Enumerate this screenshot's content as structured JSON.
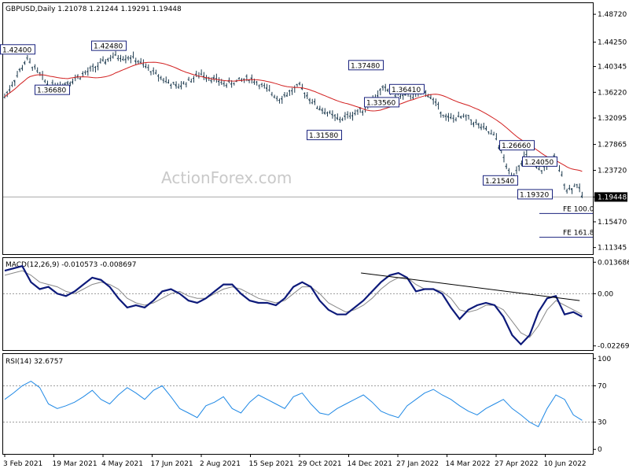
{
  "chart_data": {
    "type": "ohlc",
    "title": "GBPUSD,Daily  1.21078 1.21244 1.19291 1.19448",
    "watermark": "ActionForex.com",
    "dates": [
      "3 Feb 2021",
      "19 Mar 2021",
      "4 May 2021",
      "17 Jun 2021",
      "2 Aug 2021",
      "15 Sep 2021",
      "29 Oct 2021",
      "14 Dec 2021",
      "27 Jan 2022",
      "14 Mar 2022",
      "27 Apr 2022",
      "10 Jun 2022"
    ],
    "price_panel": {
      "ticks": [
        "1.48720",
        "1.44250",
        "1.40345",
        "1.36220",
        "1.32095",
        "1.27865",
        "1.23720",
        "1.19448",
        "1.15470",
        "1.11345"
      ],
      "tick_values": [
        1.4872,
        1.4425,
        1.4035,
        1.3622,
        1.321,
        1.2787,
        1.2372,
        1.19448,
        1.1547,
        1.1135
      ],
      "ylim": [
        1.103,
        1.505
      ],
      "last_price_label": "1.19448",
      "swing_labels": [
        {
          "text": "1.42400",
          "date_index": 0,
          "value": 1.424
        },
        {
          "text": "1.36680",
          "date_index": 1,
          "value": 1.3668
        },
        {
          "text": "1.42480",
          "date_index": 2,
          "value": 1.4248
        },
        {
          "text": "1.31580",
          "date_index": 6,
          "value": 1.3158
        },
        {
          "text": "1.37480",
          "date_index": 7,
          "value": 1.3748
        },
        {
          "text": "1.33560",
          "date_index": 7,
          "value": 1.3356
        },
        {
          "text": "1.36410",
          "date_index": 8,
          "value": 1.3641
        },
        {
          "text": "1.26660",
          "date_index": 10,
          "value": 1.2666
        },
        {
          "text": "1.21540",
          "date_index": 10,
          "value": 1.2154
        },
        {
          "text": "1.24050",
          "date_index": 10,
          "value": 1.2405
        },
        {
          "text": "1.19320",
          "date_index": 10,
          "value": 1.1932
        }
      ],
      "fe_labels": [
        {
          "text": "FE 100.0",
          "value": 1.168
        },
        {
          "text": "FE 161.8",
          "value": 1.13
        }
      ]
    },
    "macd_panel": {
      "label": "MACD(12,26,9) -0.010573 -0.008697",
      "ticks": [
        "0.013686",
        "0.00",
        "-0.022698"
      ],
      "tick_values": [
        0.013686,
        0.0,
        -0.022698
      ],
      "ylim": [
        -0.0245,
        0.0155
      ],
      "macd": [
        0.01,
        0.011,
        0.012,
        0.005,
        0.002,
        0.003,
        0.0,
        -0.001,
        0.001,
        0.004,
        0.007,
        0.006,
        0.003,
        -0.002,
        -0.006,
        -0.005,
        -0.006,
        -0.003,
        0.001,
        0.002,
        0.0,
        -0.003,
        -0.004,
        -0.002,
        0.001,
        0.004,
        0.004,
        0.0,
        -0.003,
        -0.004,
        -0.004,
        -0.005,
        -0.002,
        0.003,
        0.005,
        0.003,
        -0.003,
        -0.007,
        -0.009,
        -0.009,
        -0.006,
        -0.003,
        0.001,
        0.005,
        0.008,
        0.009,
        0.007,
        0.001,
        0.002,
        0.002,
        0.0,
        -0.006,
        -0.011,
        -0.007,
        -0.005,
        -0.004,
        -0.005,
        -0.01,
        -0.018,
        -0.022,
        -0.018,
        -0.008,
        -0.002,
        -0.001,
        -0.009,
        -0.008,
        -0.01
      ],
      "signal": [
        0.008,
        0.009,
        0.01,
        0.008,
        0.005,
        0.004,
        0.003,
        0.001,
        0.0,
        0.002,
        0.004,
        0.005,
        0.004,
        0.002,
        -0.002,
        -0.004,
        -0.005,
        -0.004,
        -0.002,
        0.0,
        0.001,
        -0.001,
        -0.002,
        -0.002,
        0.0,
        0.002,
        0.003,
        0.002,
        0.0,
        -0.002,
        -0.003,
        -0.004,
        -0.003,
        0.0,
        0.003,
        0.003,
        0.0,
        -0.004,
        -0.006,
        -0.008,
        -0.007,
        -0.005,
        -0.002,
        0.002,
        0.005,
        0.007,
        0.007,
        0.004,
        0.002,
        0.002,
        0.001,
        -0.002,
        -0.007,
        -0.008,
        -0.007,
        -0.005,
        -0.005,
        -0.007,
        -0.012,
        -0.017,
        -0.019,
        -0.014,
        -0.007,
        -0.003,
        -0.005,
        -0.007,
        -0.009
      ],
      "trendline": [
        [
          7.25,
          0.009
        ],
        [
          11.7,
          -0.003
        ]
      ]
    },
    "rsi_panel": {
      "label": "RSI(14) 32.6757",
      "ticks": [
        "100",
        "70",
        "30",
        "0"
      ],
      "tick_values": [
        100,
        70,
        30,
        0
      ],
      "ylim": [
        -5,
        105
      ],
      "levels": [
        70,
        30
      ],
      "rsi": [
        55,
        62,
        70,
        75,
        68,
        50,
        45,
        48,
        52,
        58,
        65,
        55,
        50,
        60,
        68,
        62,
        55,
        65,
        70,
        58,
        45,
        40,
        35,
        48,
        52,
        58,
        45,
        40,
        52,
        60,
        55,
        50,
        45,
        58,
        62,
        50,
        40,
        38,
        45,
        50,
        55,
        60,
        52,
        42,
        38,
        35,
        48,
        55,
        62,
        66,
        60,
        55,
        48,
        42,
        38,
        45,
        50,
        55,
        45,
        38,
        30,
        25,
        45,
        60,
        55,
        38,
        32
      ],
      "rsi_last": 32.6757
    }
  }
}
